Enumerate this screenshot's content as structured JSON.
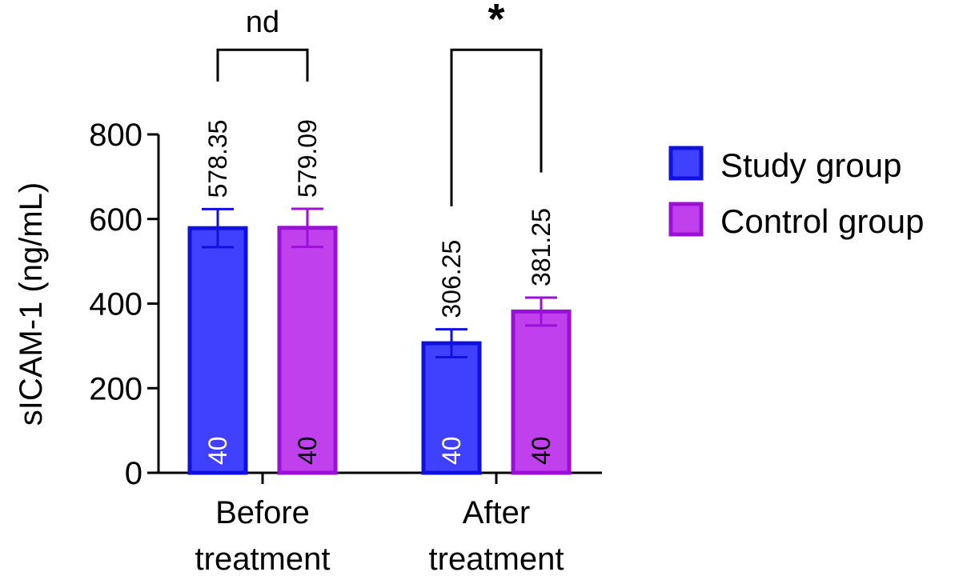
{
  "chart_data": {
    "type": "bar",
    "title": "",
    "xlabel": "",
    "ylabel": "sICAM-1 (ng/mL)",
    "ylim": [
      0,
      800
    ],
    "yticks": [
      0,
      200,
      400,
      600,
      800
    ],
    "grid": false,
    "legend_position": "right",
    "categories": [
      {
        "line1": "Before",
        "line2": "treatment"
      },
      {
        "line1": "After",
        "line2": "treatment"
      }
    ],
    "series": [
      {
        "name": "Study group",
        "color": "#4040ff",
        "edge_color": "#1010e0",
        "values": [
          578.35,
          306.25
        ],
        "value_labels": [
          "578.35",
          "306.25"
        ],
        "error": [
          45,
          33
        ],
        "n_labels": [
          "40",
          "40"
        ],
        "n_label_color": "#ffffff"
      },
      {
        "name": "Control group",
        "color": "#c040ee",
        "edge_color": "#9a10d8",
        "values": [
          579.09,
          381.25
        ],
        "value_labels": [
          "579.09",
          "381.25"
        ],
        "error": [
          45,
          33
        ],
        "n_labels": [
          "40",
          "40"
        ],
        "n_label_color": "#000000"
      }
    ],
    "annotations": [
      {
        "category_index": 0,
        "label": "nd",
        "bracket_top": 1000,
        "bracket_bottom": 925
      },
      {
        "category_index": 1,
        "label": "*",
        "bracket_top": 1000,
        "bracket_bottom": 710,
        "left_bottom": 630
      }
    ]
  }
}
